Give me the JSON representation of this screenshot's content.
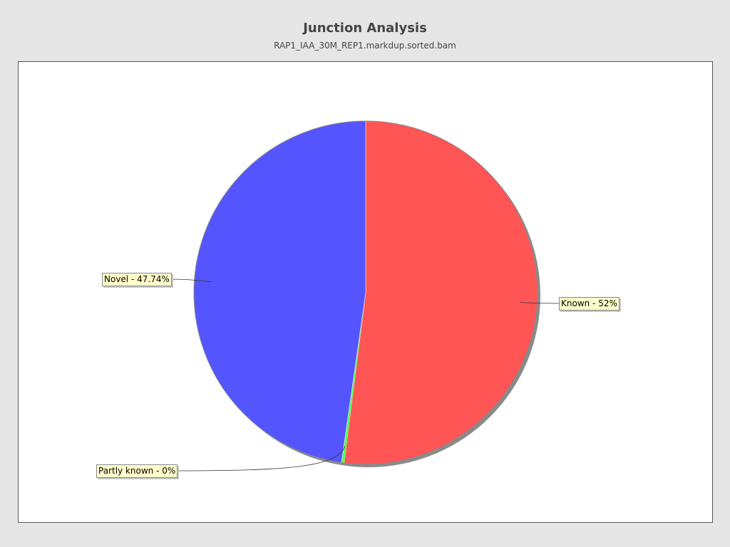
{
  "page": {
    "background": "#e6e6e6"
  },
  "chart_data": {
    "type": "pie",
    "title": "Junction Analysis",
    "subtitle": "RAP1_IAA_30M_REP1.markdup.sorted.bam",
    "slices": [
      {
        "label": "Known - 52%",
        "value": 52.0,
        "color": "#ff5555"
      },
      {
        "label": "Partly known - 0%",
        "value": 0.26,
        "color": "#55ff55"
      },
      {
        "label": "Novel - 47.74%",
        "value": 47.74,
        "color": "#5555ff"
      }
    ],
    "start_angle": "top",
    "direction": "clockwise",
    "legend": "none",
    "label_style": "callout-boxes"
  }
}
